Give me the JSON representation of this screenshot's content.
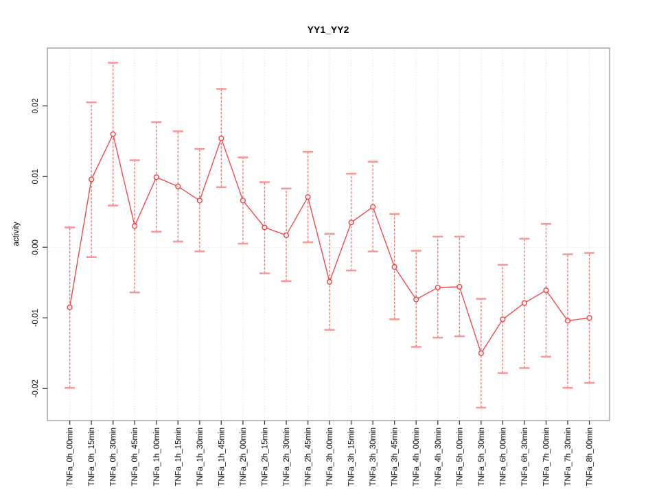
{
  "window": {
    "background": "#ffffff"
  },
  "colors": {
    "series_line": "#f04b4b",
    "point_stroke": "#ee4040",
    "point_fill": "#ffffff",
    "error_bar_line": "#ec6262",
    "error_bar_cap": "#f89494",
    "grid": "#d8d8d8",
    "zero_line": "#d8d8d8",
    "box": "#979797",
    "tick": "#3a3a3a",
    "text": "#000000"
  },
  "chart_data": {
    "type": "line",
    "title": "YY1_YY2",
    "xlabel": "",
    "ylabel": "activity",
    "ylim": [
      -0.0245,
      0.0282
    ],
    "yticks": [
      -0.02,
      -0.01,
      0.0,
      0.01,
      0.02
    ],
    "ytick_labels": [
      "-0.02",
      "-0.01",
      "0.00",
      "0.01",
      "0.02"
    ],
    "grid": "vertical dotted gridlines at every category; dotted horizontal line at y=0",
    "legend": "none",
    "point_style": "open-circle",
    "error_bars": "dashed vertical whiskers with horizontal caps",
    "categories": [
      "TNFa_0h_00min",
      "TNFa_0h_15min",
      "TNFa_0h_30min",
      "TNFa_0h_45min",
      "TNFa_1h_00min",
      "TNFa_1h_15min",
      "TNFa_1h_30min",
      "TNFa_1h_45min",
      "TNFa_2h_00min",
      "TNFa_2h_15min",
      "TNFa_2h_30min",
      "TNFa_2h_45min",
      "TNFa_3h_00min",
      "TNFa_3h_15min",
      "TNFa_3h_30min",
      "TNFa_3h_45min",
      "TNFa_4h_00min",
      "TNFa_4h_30min",
      "TNFa_5h_00min",
      "TNFa_5h_30min",
      "TNFa_6h_00min",
      "TNFa_6h_30min",
      "TNFa_7h_00min",
      "TNFa_7h_30min",
      "TNFa_8h_00min"
    ],
    "series": [
      {
        "name": "activity",
        "values": [
          -0.0085,
          0.0096,
          0.016,
          0.003,
          0.0099,
          0.0086,
          0.0066,
          0.0154,
          0.0066,
          0.0028,
          0.0017,
          0.0071,
          -0.0049,
          0.0035,
          0.0057,
          -0.0028,
          -0.0074,
          -0.0057,
          -0.0056,
          -0.015,
          -0.0102,
          -0.0079,
          -0.0061,
          -0.0104,
          -0.01
        ],
        "error_low": [
          -0.0199,
          -0.0014,
          0.0059,
          -0.0064,
          0.0022,
          0.0008,
          -0.0006,
          0.0085,
          0.0005,
          -0.0037,
          -0.0048,
          0.0007,
          -0.0117,
          -0.0033,
          -0.0006,
          -0.0102,
          -0.0141,
          -0.0128,
          -0.0126,
          -0.0227,
          -0.0178,
          -0.0171,
          -0.0155,
          -0.0199,
          -0.0192
        ],
        "error_high": [
          0.0028,
          0.0205,
          0.0261,
          0.0123,
          0.0177,
          0.0164,
          0.0139,
          0.0224,
          0.0127,
          0.0092,
          0.0083,
          0.0135,
          0.0019,
          0.0104,
          0.0121,
          0.0047,
          -0.0005,
          0.0015,
          0.0015,
          -0.0073,
          -0.0025,
          0.0012,
          0.0033,
          -0.001,
          -0.0008
        ]
      }
    ]
  }
}
